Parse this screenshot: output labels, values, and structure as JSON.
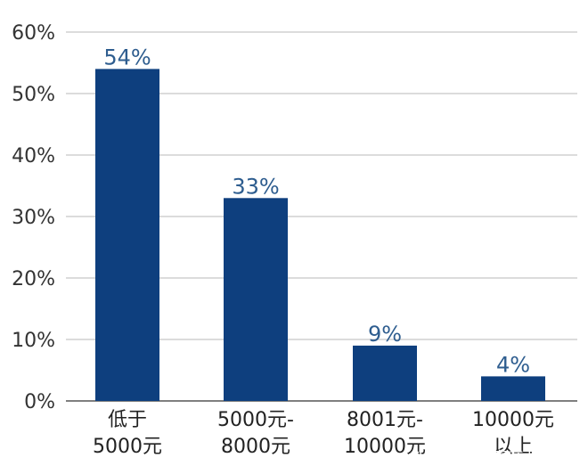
{
  "chart_data": {
    "type": "bar",
    "categories": [
      [
        "低于",
        "5000元"
      ],
      [
        "5000元-",
        "8000元"
      ],
      [
        "8001元-",
        "10000元"
      ],
      [
        "10000元",
        "以上"
      ]
    ],
    "values": [
      54,
      33,
      9,
      4
    ],
    "value_labels": [
      "54%",
      "33%",
      "9%",
      "4%"
    ],
    "y_ticks": [
      "0%",
      "10%",
      "20%",
      "30%",
      "40%",
      "50%",
      "60%"
    ],
    "ylim": [
      0,
      60
    ],
    "grid": true,
    "bar_color": "#0e3f7e",
    "value_label_color": "#2e5d8f",
    "title": "",
    "xlabel": "",
    "ylabel": ""
  },
  "watermark": "头条号 | 帅真商业视界"
}
